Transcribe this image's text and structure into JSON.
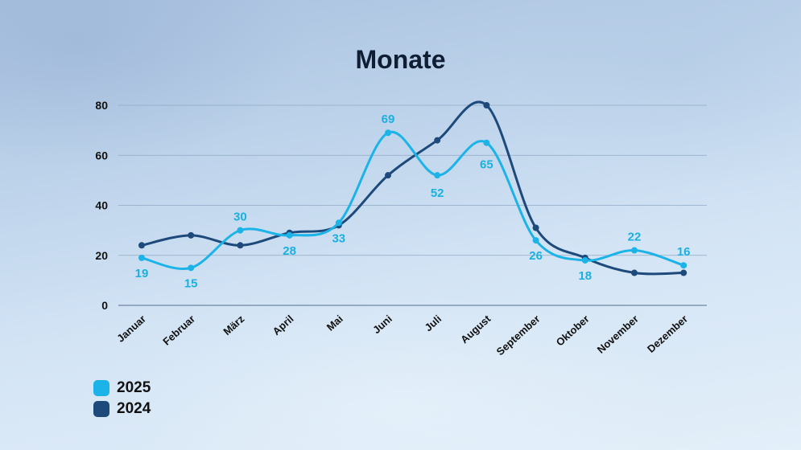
{
  "title": "Monate",
  "legend": [
    {
      "label": "2025",
      "color": "#1cb4e8"
    },
    {
      "label": "2024",
      "color": "#1d4a7a"
    }
  ],
  "colors": {
    "series_2025": "#1cb4e8",
    "series_2024": "#1d4a7a",
    "data_label": "#1bb0df",
    "gridline": "#8fa9c4"
  },
  "chart_data": {
    "type": "line",
    "title": "Monate",
    "xlabel": "",
    "ylabel": "",
    "categories": [
      "Januar",
      "Februar",
      "März",
      "April",
      "Mai",
      "Juni",
      "Juli",
      "August",
      "September",
      "Oktober",
      "November",
      "Dezember"
    ],
    "series": [
      {
        "name": "2025",
        "values": [
          19,
          15,
          30,
          28,
          33,
          69,
          52,
          65,
          26,
          18,
          22,
          16
        ],
        "data_labels": true
      },
      {
        "name": "2024",
        "values": [
          24,
          28,
          24,
          29,
          32,
          52,
          66,
          80,
          31,
          19,
          13,
          13
        ],
        "data_labels": false
      }
    ],
    "yticks": [
      0,
      20,
      40,
      60,
      80
    ],
    "ylim": [
      0,
      80
    ],
    "grid": true,
    "smooth": true,
    "legend_position": "bottom-left"
  }
}
